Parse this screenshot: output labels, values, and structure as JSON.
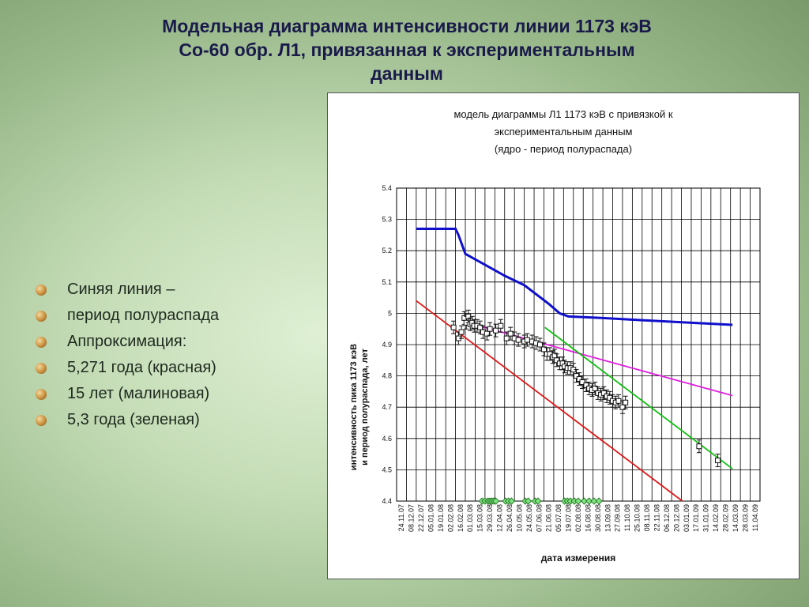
{
  "slide": {
    "title_lines": [
      "Модельная диаграмма интенсивности линии 1173 кэВ",
      "Co-60 обр. Л1, привязанная к экспериментальным",
      "данным"
    ],
    "bullets": [
      "Синяя линия –",
      "период полураспада",
      "Аппроксимация:",
      "5,271 года (красная)",
      "15 лет (малиновая)",
      "5,3 года (зеленая)"
    ]
  },
  "colors": {
    "blue": "#1010cc",
    "red": "#e01818",
    "magenta": "#e020e0",
    "green": "#10c010",
    "data_marker": "#111111",
    "event_marker": "#20a020",
    "title": "#1a1a4a",
    "bullet": "#c98f3c"
  },
  "chart_data": {
    "type": "line",
    "title_lines": [
      "модель диаграммы Л1 1173 кэВ с привязкой к",
      "экспериментальным данным",
      "(ядро - период полураспада)"
    ],
    "xlabel": "дата измерения",
    "ylabel_lines": [
      "интенсивность пика 1173 кэВ",
      "и период полураспада, лет"
    ],
    "ylim": [
      4.4,
      5.4
    ],
    "yticks": [
      "4.4",
      "4.5",
      "4.6",
      "4.7",
      "4.8",
      "4.9",
      "5",
      "5.1",
      "5.2",
      "5.3",
      "5.4"
    ],
    "xticks": [
      "24.11.07",
      "08.12.07",
      "22.12.07",
      "05.01.08",
      "19.01.08",
      "02.02.08",
      "16.02.08",
      "01.03.08",
      "15.03.08",
      "29.03.08",
      "12.04.08",
      "26.04.08",
      "10.05.08",
      "24.05.08",
      "07.06.08",
      "21.06.08",
      "05.07.08",
      "19.07.08",
      "02.08.08",
      "16.08.08",
      "30.08.08",
      "13.09.08",
      "27.09.08",
      "11.10.08",
      "25.10.08",
      "08.11.08",
      "22.11.08",
      "06.12.08",
      "20.12.08",
      "03.01.09",
      "17.01.09",
      "31.01.09",
      "14.02.09",
      "28.02.09",
      "14.03.09",
      "28.03.09",
      "11.04.09"
    ],
    "grid": true,
    "series": [
      {
        "color_key": "blue",
        "x": [
          2,
          6,
          6.3,
          7,
          11,
          13,
          15.5,
          16.6,
          17.5,
          21,
          25,
          33,
          34.2
        ],
        "y": [
          5.27,
          5.27,
          5.25,
          5.19,
          5.12,
          5.09,
          5.03,
          5.0,
          4.99,
          4.985,
          4.978,
          4.965,
          4.963
        ]
      },
      {
        "color_key": "red",
        "x": [
          2,
          29.1
        ],
        "y": [
          5.04,
          4.4
        ]
      },
      {
        "color_key": "magenta",
        "x": [
          7.2,
          34.2
        ],
        "y": [
          4.97,
          4.737
        ]
      },
      {
        "color_key": "green",
        "x": [
          15.1,
          34.2
        ],
        "y": [
          4.955,
          4.503
        ]
      },
      {
        "color_key": "data_marker",
        "x": [
          5.8,
          6.3,
          6.6,
          6.9,
          7.1,
          7.3,
          7.5,
          7.7,
          7.9,
          8.2,
          8.5,
          8.8,
          9.2,
          9.5,
          10.1,
          10.6,
          11.2,
          11.6,
          12.0,
          12.4,
          13.0,
          13.3,
          13.8,
          14.2,
          14.6,
          15.0,
          15.3,
          15.6,
          15.9,
          16.1,
          16.3,
          16.6,
          16.9,
          17.1,
          17.4,
          17.7,
          18.0,
          18.3,
          18.6,
          18.9,
          19.3,
          19.6,
          19.9,
          20.2,
          20.5,
          20.8,
          21.1,
          21.4,
          21.7,
          22.0,
          22.3,
          22.6,
          23.0,
          23.3,
          30.8,
          32.7
        ],
        "y": [
          4.955,
          4.92,
          4.94,
          4.985,
          4.97,
          4.99,
          4.965,
          4.97,
          4.96,
          4.96,
          4.955,
          4.94,
          4.935,
          4.95,
          4.945,
          4.96,
          4.92,
          4.935,
          4.92,
          4.915,
          4.91,
          4.915,
          4.91,
          4.905,
          4.9,
          4.885,
          4.87,
          4.87,
          4.86,
          4.865,
          4.85,
          4.84,
          4.84,
          4.83,
          4.825,
          4.825,
          4.82,
          4.8,
          4.79,
          4.78,
          4.77,
          4.76,
          4.755,
          4.76,
          4.745,
          4.74,
          4.745,
          4.735,
          4.73,
          4.72,
          4.715,
          4.72,
          4.7,
          4.715,
          4.575,
          4.53
        ]
      },
      {
        "color_key": "event_marker",
        "x": [
          8.7,
          9.0,
          9.3,
          9.5,
          9.7,
          9.9,
          10.1,
          11.1,
          11.4,
          11.7,
          13.1,
          13.4,
          14.1,
          14.4,
          17.1,
          17.4,
          17.7,
          18.1,
          18.5,
          19.1,
          19.6,
          20.1,
          20.6
        ],
        "y": [
          4.4,
          4.4,
          4.4,
          4.4,
          4.4,
          4.4,
          4.4,
          4.4,
          4.4,
          4.4,
          4.4,
          4.4,
          4.4,
          4.4,
          4.4,
          4.4,
          4.4,
          4.4,
          4.4,
          4.4,
          4.4,
          4.4,
          4.4
        ]
      }
    ]
  }
}
